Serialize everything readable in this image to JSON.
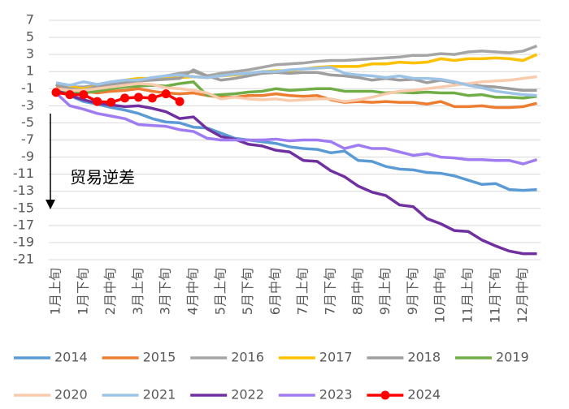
{
  "chart_data": {
    "type": "line",
    "annotations": [
      "贸易逆差"
    ],
    "categories": [
      "1月上旬",
      null,
      "1月下旬",
      null,
      "2月中旬",
      null,
      "3月上旬",
      null,
      "3月下旬",
      null,
      "4月中旬",
      null,
      "5月上旬",
      null,
      "5月下旬",
      null,
      "6月中旬",
      null,
      "7月上旬",
      null,
      "7月下旬",
      null,
      "8月中旬",
      null,
      "9月上旬",
      null,
      "9月下旬",
      null,
      "10月中旬",
      null,
      "11月上旬",
      null,
      "11月下旬",
      null,
      "12月中旬",
      null
    ],
    "ylim": [
      -21,
      7
    ],
    "yticks": [
      -21,
      -19,
      -17,
      -15,
      -13,
      -11,
      -9,
      -7,
      -5,
      -3,
      -1,
      1,
      3,
      5,
      7
    ],
    "grid": true,
    "legend": "bottom",
    "series": [
      {
        "name": "2014",
        "color": "#5b9bd5",
        "values": [
          -0.5,
          -1.8,
          -2.5,
          -2.8,
          -3.2,
          -3.5,
          -3.9,
          -4.5,
          -4.9,
          -5.0,
          -5.5,
          -5.6,
          -6.2,
          -6.8,
          -7.0,
          -7.2,
          -7.4,
          -7.8,
          -8.0,
          -8.1,
          -8.5,
          -8.3,
          -9.4,
          -9.5,
          -10.1,
          -10.4,
          -10.5,
          -10.8,
          -10.9,
          -11.2,
          -11.7,
          -12.2,
          -12.1,
          -12.8,
          -12.9,
          -12.8
        ]
      },
      {
        "name": "2015",
        "color": "#ed7d31",
        "values": [
          -0.8,
          -1.2,
          -1.3,
          -1.5,
          -1.3,
          -1.2,
          -1.0,
          -1.3,
          -1.5,
          -1.6,
          -1.5,
          -1.8,
          -2.0,
          -2.0,
          -1.8,
          -1.8,
          -1.6,
          -1.8,
          -1.9,
          -1.8,
          -2.3,
          -2.6,
          -2.5,
          -2.6,
          -2.5,
          -2.6,
          -2.6,
          -2.8,
          -2.5,
          -3.1,
          -3.1,
          -3.0,
          -3.2,
          -3.2,
          -3.1,
          -2.7
        ]
      },
      {
        "name": "2016",
        "color": "#a5a5a5",
        "values": [
          -0.5,
          -0.8,
          -0.8,
          -0.6,
          -0.4,
          -0.2,
          0,
          0.3,
          0.5,
          0.8,
          1.0,
          0.5,
          0.8,
          1.0,
          1.2,
          1.5,
          1.8,
          1.9,
          2.0,
          2.2,
          2.3,
          2.3,
          2.4,
          2.5,
          2.6,
          2.7,
          2.9,
          2.9,
          3.1,
          3.0,
          3.3,
          3.4,
          3.3,
          3.2,
          3.4,
          4.0
        ]
      },
      {
        "name": "2017",
        "color": "#ffc000",
        "values": [
          -0.5,
          -0.8,
          -1.0,
          -0.7,
          -0.4,
          0,
          0.2,
          0.2,
          0.3,
          0.3,
          0.4,
          0.3,
          0.5,
          0.6,
          0.8,
          1.0,
          1.1,
          1.1,
          1.3,
          1.5,
          1.6,
          1.6,
          1.6,
          1.9,
          1.9,
          2.1,
          2.0,
          2.1,
          2.5,
          2.3,
          2.5,
          2.5,
          2.6,
          2.5,
          2.3,
          3.0
        ]
      },
      {
        "name": "2018",
        "color": "#9e9e9e",
        "values": [
          -0.5,
          -1.0,
          -1.2,
          -0.7,
          -0.5,
          -0.3,
          -0.1,
          0,
          0.1,
          0.2,
          1.2,
          0.5,
          0,
          0.2,
          0.5,
          0.8,
          0.9,
          0.8,
          0.9,
          0.9,
          0.6,
          0.5,
          0.3,
          0,
          0.2,
          0,
          0.1,
          -0.3,
          0,
          -0.3,
          -0.5,
          -0.7,
          -0.8,
          -1.0,
          -1.2,
          -1.2
        ]
      },
      {
        "name": "2019",
        "color": "#70ad47",
        "values": [
          -1.0,
          -1.5,
          -1.5,
          -1.3,
          -1.0,
          -0.8,
          -0.7,
          -0.6,
          -0.7,
          -0.4,
          -0.2,
          -1.8,
          -1.7,
          -1.6,
          -1.4,
          -1.3,
          -1.0,
          -1.2,
          -1.1,
          -1.0,
          -1.0,
          -1.3,
          -1.3,
          -1.3,
          -1.5,
          -1.4,
          -1.5,
          -1.4,
          -1.5,
          -1.5,
          -1.8,
          -1.7,
          -2.0,
          -2.0,
          -2.1,
          -1.9
        ]
      },
      {
        "name": "2020",
        "color": "#f8cbad",
        "values": [
          -1.0,
          -1.2,
          -1.2,
          -1.0,
          -0.8,
          -0.6,
          -0.4,
          -0.5,
          -0.9,
          -1.0,
          -1.2,
          -1.5,
          -2.2,
          -2.0,
          -2.2,
          -2.3,
          -2.2,
          -2.4,
          -2.3,
          -2.2,
          -2.2,
          -2.5,
          -2.3,
          -2.0,
          -1.6,
          -1.3,
          -1.2,
          -1.0,
          -0.8,
          -0.6,
          -0.4,
          -0.2,
          -0.1,
          0,
          0.2,
          0.4
        ]
      },
      {
        "name": "2021",
        "color": "#9dc3e6",
        "values": [
          -0.3,
          -0.6,
          -0.2,
          -0.5,
          -0.2,
          0,
          0,
          0.3,
          0.5,
          0.6,
          0.4,
          0.3,
          0.5,
          0.7,
          0.8,
          1.0,
          1.0,
          1.2,
          1.3,
          1.4,
          1.5,
          0.8,
          0.6,
          0.5,
          0.3,
          0.5,
          0.2,
          0.2,
          0.1,
          -0.2,
          -0.6,
          -0.9,
          -1.3,
          -1.5,
          -1.7,
          -1.8
        ]
      },
      {
        "name": "2022",
        "color": "#7030a0",
        "values": [
          -1.2,
          -1.8,
          -2.3,
          -2.7,
          -2.9,
          -3.1,
          -3.0,
          -3.3,
          -3.7,
          -4.5,
          -4.3,
          -5.7,
          -6.6,
          -6.9,
          -7.5,
          -7.7,
          -8.2,
          -8.4,
          -9.4,
          -9.5,
          -10.6,
          -11.3,
          -12.4,
          -13.1,
          -13.5,
          -14.6,
          -14.8,
          -16.2,
          -16.8,
          -17.6,
          -17.7,
          -18.7,
          -19.4,
          -20.0,
          -20.3,
          -20.3
        ]
      },
      {
        "name": "2023",
        "color": "#a07cf2",
        "values": [
          -1.5,
          -3.0,
          -3.4,
          -3.9,
          -4.2,
          -4.5,
          -5.2,
          -5.3,
          -5.4,
          -5.8,
          -6.0,
          -6.8,
          -7.0,
          -7.0,
          -7.0,
          -7.0,
          -6.9,
          -7.1,
          -7.0,
          -7.0,
          -7.2,
          -8.0,
          -7.6,
          -8.0,
          -8.0,
          -8.4,
          -8.8,
          -8.6,
          -9.0,
          -9.1,
          -9.3,
          -9.3,
          -9.4,
          -9.4,
          -9.8,
          -9.3
        ]
      },
      {
        "name": "2024",
        "color": "#ff0000",
        "markers": true,
        "values": [
          -1.44,
          -1.7,
          -1.7,
          -2.5,
          -2.6,
          -2.1,
          -2.0,
          -2.1,
          -1.6,
          -2.5,
          null,
          null,
          null,
          null,
          null,
          null,
          null,
          null,
          null,
          null,
          null,
          null,
          null,
          null,
          null,
          null,
          null,
          null,
          null,
          null,
          null,
          null,
          null,
          null,
          null,
          null
        ]
      }
    ]
  }
}
